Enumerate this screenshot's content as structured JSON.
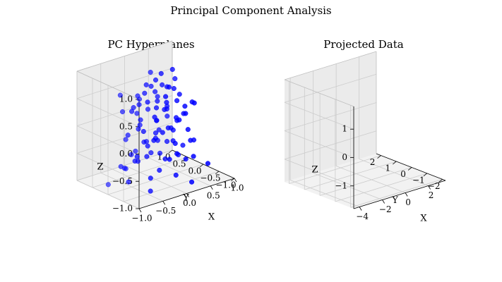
{
  "figure": {
    "title": "Principal Component Analysis"
  },
  "chart_data": [
    {
      "type": "scatter",
      "projection": "3d",
      "title": "PC Hyperplanes",
      "xlabel": "X",
      "ylabel": "Y",
      "zlabel": "Z",
      "xlim": [
        -1.0,
        1.0
      ],
      "ylim": [
        -1.0,
        1.0
      ],
      "zlim": [
        -1.0,
        1.0
      ],
      "xticks": [
        -1.0,
        -0.5,
        0.0,
        0.5,
        1.0
      ],
      "yticks": [
        -1.0,
        -0.5,
        0.0,
        0.5,
        1.0
      ],
      "zticks": [
        -1.0,
        -0.5,
        0.0,
        0.5,
        1.0
      ],
      "xtick_labels": [
        "−1.0",
        "−0.5",
        "0.0",
        "0.5",
        "1.0"
      ],
      "ytick_labels": [
        "−1.0",
        "−0.5",
        "0.0",
        "0.5",
        "1.0"
      ],
      "ztick_labels": [
        "−1.0",
        "−0.5",
        "0.0",
        "0.5",
        "1.0"
      ],
      "grid": true,
      "point_color": "#0000ff",
      "points": [
        [
          0.05,
          -0.1,
          0.95
        ],
        [
          0.0,
          0.0,
          0.82
        ],
        [
          -0.1,
          0.15,
          0.72
        ],
        [
          0.15,
          -0.2,
          0.7
        ],
        [
          0.2,
          0.1,
          0.65
        ],
        [
          -0.2,
          0.05,
          0.62
        ],
        [
          0.1,
          0.3,
          0.6
        ],
        [
          0.35,
          -0.05,
          0.58
        ],
        [
          -0.3,
          -0.2,
          0.55
        ],
        [
          0.4,
          0.25,
          0.52
        ],
        [
          0.0,
          -0.35,
          0.5
        ],
        [
          -0.15,
          0.35,
          0.48
        ],
        [
          0.25,
          -0.3,
          0.45
        ],
        [
          0.5,
          0.0,
          0.42
        ],
        [
          -0.4,
          0.1,
          0.4
        ],
        [
          0.1,
          0.1,
          0.38
        ],
        [
          -0.05,
          -0.1,
          0.35
        ],
        [
          0.3,
          0.4,
          0.33
        ],
        [
          -0.25,
          -0.35,
          0.3
        ],
        [
          0.45,
          -0.25,
          0.28
        ],
        [
          0.6,
          0.3,
          0.6
        ],
        [
          0.55,
          -0.4,
          0.35
        ],
        [
          -0.5,
          0.3,
          0.3
        ],
        [
          0.15,
          -0.05,
          0.25
        ],
        [
          0.0,
          0.25,
          0.22
        ],
        [
          -0.35,
          -0.05,
          0.2
        ],
        [
          0.3,
          0.1,
          0.18
        ],
        [
          0.2,
          -0.45,
          0.15
        ],
        [
          -0.1,
          0.45,
          0.12
        ],
        [
          0.5,
          0.4,
          0.1
        ],
        [
          -0.45,
          -0.3,
          0.08
        ],
        [
          0.05,
          0.05,
          0.05
        ],
        [
          0.35,
          -0.15,
          0.02
        ],
        [
          -0.2,
          0.2,
          0.0
        ],
        [
          0.1,
          -0.25,
          -0.02
        ],
        [
          0.65,
          0.1,
          0.0
        ],
        [
          -0.55,
          0.05,
          -0.05
        ],
        [
          0.25,
          0.35,
          -0.08
        ],
        [
          -0.3,
          -0.4,
          -0.1
        ],
        [
          0.45,
          -0.35,
          -0.12
        ],
        [
          0.0,
          0.0,
          -0.15
        ],
        [
          -0.1,
          -0.15,
          -0.18
        ],
        [
          0.2,
          0.2,
          -0.2
        ],
        [
          0.4,
          0.05,
          -0.22
        ],
        [
          -0.4,
          0.35,
          -0.25
        ],
        [
          0.15,
          -0.4,
          -0.28
        ],
        [
          0.55,
          0.35,
          -0.3
        ],
        [
          -0.2,
          -0.05,
          -0.32
        ],
        [
          0.3,
          -0.1,
          -0.35
        ],
        [
          -0.05,
          0.3,
          -0.38
        ],
        [
          0.6,
          -0.2,
          -0.4
        ],
        [
          -0.35,
          -0.25,
          -0.42
        ],
        [
          0.1,
          0.45,
          -0.45
        ],
        [
          0.4,
          0.25,
          -0.48
        ],
        [
          -0.5,
          -0.1,
          -0.5
        ],
        [
          0.25,
          -0.3,
          -0.52
        ],
        [
          0.0,
          0.15,
          -0.55
        ],
        [
          -0.25,
          0.4,
          -0.58
        ],
        [
          0.5,
          -0.45,
          -0.6
        ],
        [
          0.7,
          0.2,
          -0.62
        ],
        [
          -0.6,
          0.2,
          -0.65
        ],
        [
          0.2,
          0.0,
          -0.68
        ],
        [
          -0.15,
          -0.35,
          -0.7
        ],
        [
          0.35,
          0.4,
          -0.72
        ],
        [
          -0.4,
          -0.45,
          -0.75
        ],
        [
          0.6,
          -0.05,
          -0.78
        ],
        [
          -0.7,
          -0.2,
          -0.8
        ],
        [
          0.1,
          -0.5,
          -0.82
        ],
        [
          -0.3,
          0.5,
          -0.85
        ],
        [
          0.8,
          0.5,
          -0.9
        ],
        [
          -0.8,
          0.3,
          -0.95
        ],
        [
          0.3,
          -0.7,
          -0.95
        ],
        [
          -0.5,
          -0.6,
          -0.92
        ],
        [
          0.9,
          -0.3,
          -0.88
        ],
        [
          -0.2,
          0.7,
          -0.92
        ],
        [
          0.05,
          0.6,
          0.3
        ],
        [
          -0.6,
          -0.15,
          0.45
        ],
        [
          0.7,
          -0.1,
          0.25
        ],
        [
          -0.45,
          0.45,
          0.55
        ],
        [
          0.25,
          0.55,
          0.75
        ],
        [
          -0.15,
          -0.55,
          0.7
        ],
        [
          0.45,
          0.15,
          0.85
        ],
        [
          0.6,
          0.55,
          -0.15
        ],
        [
          -0.65,
          -0.4,
          -0.3
        ],
        [
          0.8,
          0.0,
          -0.5
        ],
        [
          -0.1,
          -0.6,
          -0.45
        ],
        [
          0.0,
          0.65,
          -0.65
        ],
        [
          0.15,
          0.25,
          0.5
        ],
        [
          -0.25,
          0.15,
          0.4
        ],
        [
          0.3,
          -0.2,
          0.1
        ],
        [
          -0.05,
          -0.3,
          -0.05
        ],
        [
          0.12,
          0.12,
          -0.35
        ],
        [
          -0.18,
          0.28,
          -0.1
        ],
        [
          0.38,
          -0.38,
          0.2
        ],
        [
          -0.32,
          0.08,
          -0.6
        ]
      ]
    },
    {
      "type": "scatter",
      "projection": "3d",
      "title": "Projected Data",
      "xlabel": "X",
      "ylabel": "Y",
      "zlabel": "Z",
      "xlim": [
        -4.5,
        3.5
      ],
      "ylim": [
        -2.2,
        2.3
      ],
      "zlim": [
        -1.8,
        1.8
      ],
      "xticks": [
        -4,
        -2,
        0,
        2
      ],
      "yticks": [
        -2,
        -1,
        0,
        1,
        2
      ],
      "zticks": [
        -1,
        0,
        1
      ],
      "xtick_labels": [
        "−4",
        "−2",
        "0",
        "2"
      ],
      "ytick_labels": [
        "−2",
        "−1",
        "0",
        "1",
        "2"
      ],
      "ztick_labels": [
        "−1",
        "0",
        "1"
      ],
      "grid": true,
      "points": []
    }
  ]
}
